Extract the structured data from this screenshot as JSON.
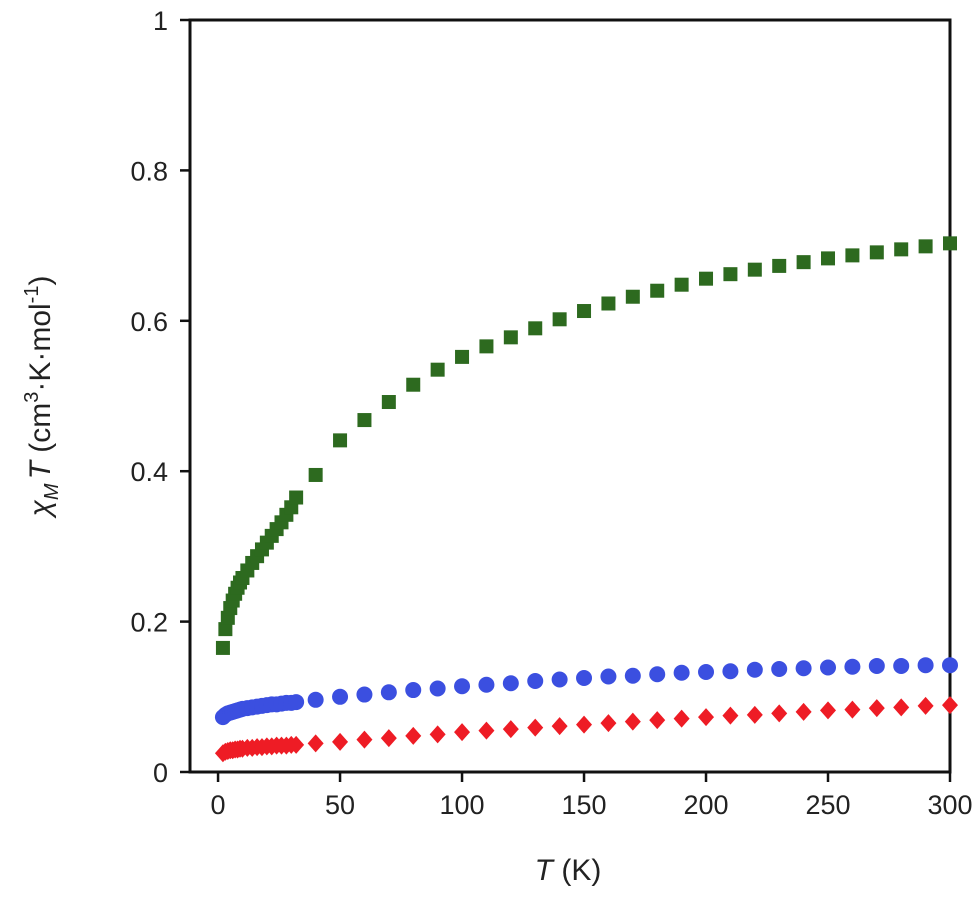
{
  "chart_data": {
    "type": "scatter",
    "x_label": [
      "T",
      " (K)"
    ],
    "y_label": [
      "χ",
      "M",
      "T",
      " (cm",
      "3",
      "·K·mol",
      "-1",
      ")"
    ],
    "x": [
      2,
      3,
      4,
      5,
      6,
      7,
      8,
      9,
      10,
      12,
      14,
      16,
      18,
      20,
      22,
      24,
      26,
      28,
      30,
      32,
      40,
      50,
      60,
      70,
      80,
      90,
      100,
      110,
      120,
      130,
      140,
      150,
      160,
      170,
      180,
      190,
      200,
      210,
      220,
      230,
      240,
      250,
      260,
      270,
      280,
      290,
      300
    ],
    "series": [
      {
        "color": "#2d6a1f",
        "marker": "square",
        "values": [
          0.165,
          0.19,
          0.205,
          0.218,
          0.228,
          0.237,
          0.245,
          0.252,
          0.258,
          0.268,
          0.278,
          0.287,
          0.296,
          0.305,
          0.314,
          0.323,
          0.332,
          0.342,
          0.352,
          0.365,
          0.395,
          0.441,
          0.468,
          0.492,
          0.515,
          0.535,
          0.552,
          0.566,
          0.578,
          0.59,
          0.602,
          0.613,
          0.623,
          0.632,
          0.64,
          0.648,
          0.656,
          0.662,
          0.668,
          0.673,
          0.678,
          0.683,
          0.687,
          0.691,
          0.695,
          0.699,
          0.703
        ]
      },
      {
        "color": "#3b4fe0",
        "marker": "circle",
        "values": [
          0.073,
          0.076,
          0.078,
          0.079,
          0.08,
          0.081,
          0.082,
          0.083,
          0.084,
          0.085,
          0.086,
          0.087,
          0.088,
          0.089,
          0.09,
          0.09,
          0.091,
          0.092,
          0.092,
          0.093,
          0.096,
          0.1,
          0.103,
          0.106,
          0.109,
          0.111,
          0.114,
          0.116,
          0.118,
          0.121,
          0.123,
          0.125,
          0.127,
          0.128,
          0.13,
          0.132,
          0.133,
          0.134,
          0.136,
          0.137,
          0.138,
          0.139,
          0.14,
          0.141,
          0.141,
          0.142,
          0.142
        ]
      },
      {
        "color": "#ee1c25",
        "marker": "diamond",
        "values": [
          0.025,
          0.027,
          0.028,
          0.029,
          0.029,
          0.03,
          0.03,
          0.031,
          0.031,
          0.032,
          0.032,
          0.033,
          0.033,
          0.034,
          0.034,
          0.035,
          0.035,
          0.035,
          0.036,
          0.036,
          0.038,
          0.04,
          0.043,
          0.045,
          0.048,
          0.05,
          0.053,
          0.055,
          0.057,
          0.059,
          0.061,
          0.063,
          0.065,
          0.067,
          0.069,
          0.071,
          0.073,
          0.075,
          0.076,
          0.078,
          0.08,
          0.082,
          0.083,
          0.085,
          0.086,
          0.088,
          0.089
        ]
      }
    ],
    "xlim": [
      -11.5,
      300
    ],
    "xticks": [
      0,
      50,
      100,
      150,
      200,
      250,
      300
    ],
    "ylim": [
      0,
      1
    ],
    "yticks": [
      0,
      0.2,
      0.4,
      0.6,
      0.8,
      1
    ],
    "grid": false
  }
}
